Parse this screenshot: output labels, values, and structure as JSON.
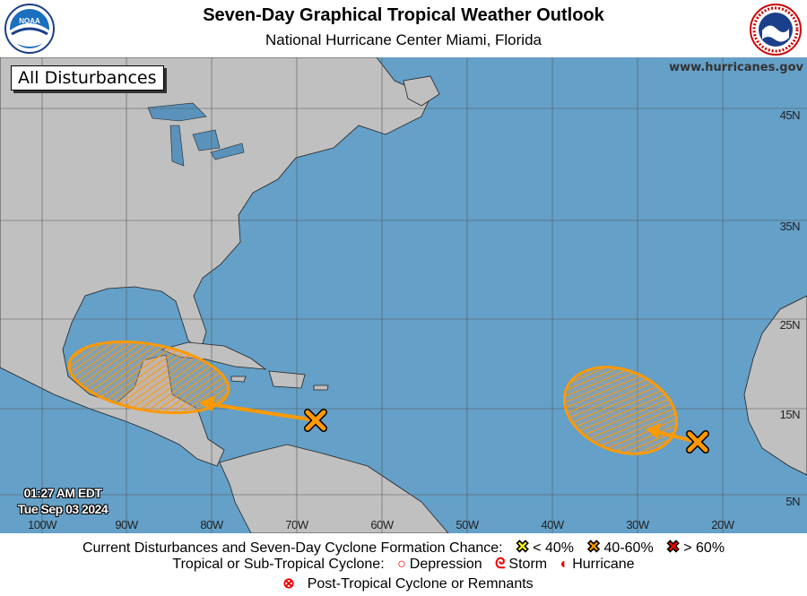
{
  "header": {
    "title": "Seven-Day Graphical Tropical Weather Outlook",
    "subtitle": "National Hurricane Center  Miami, Florida",
    "left_logo": "NOAA",
    "right_logo": "NATIONAL WEATHER SERVICE"
  },
  "map": {
    "filter_label": "All Disturbances",
    "website": "www.hurricanes.gov",
    "ocean_color": "#64a0c8",
    "land_color": "#c0c0c0",
    "latitude_labels": [
      "45N",
      "35N",
      "25N",
      "15N",
      "5N"
    ],
    "longitude_labels": [
      "100W",
      "90W",
      "80W",
      "70W",
      "60W",
      "50W",
      "40W",
      "30W",
      "20W"
    ],
    "timestamp": {
      "time": "01:27 AM EDT",
      "date": "Tue Sep 03 2024"
    },
    "disturbances": [
      {
        "chance_category": "40-60%",
        "color": "#ff9900",
        "location": "eastern Caribbean Sea",
        "track_toward": "western Caribbean / Yucatan"
      },
      {
        "chance_category": "40-60%",
        "color": "#ff9900",
        "location": "eastern tropical Atlantic",
        "track_toward": "west-northwest"
      }
    ]
  },
  "legend": {
    "formation_label": "Current Disturbances and Seven-Day Cyclone Formation Chance:",
    "low": {
      "label": "< 40%",
      "color": "#ffff00",
      "icon": "x-icon"
    },
    "medium": {
      "label": "40-60%",
      "color": "#ff9900",
      "icon": "x-icon"
    },
    "high": {
      "label": "> 60%",
      "color": "#ff0000",
      "icon": "x-icon"
    },
    "cyclone_label": "Tropical or Sub-Tropical Cyclone:",
    "depression": "Depression",
    "storm": "Storm",
    "hurricane": "Hurricane",
    "post_tropical": "Post-Tropical Cyclone or Remnants"
  }
}
